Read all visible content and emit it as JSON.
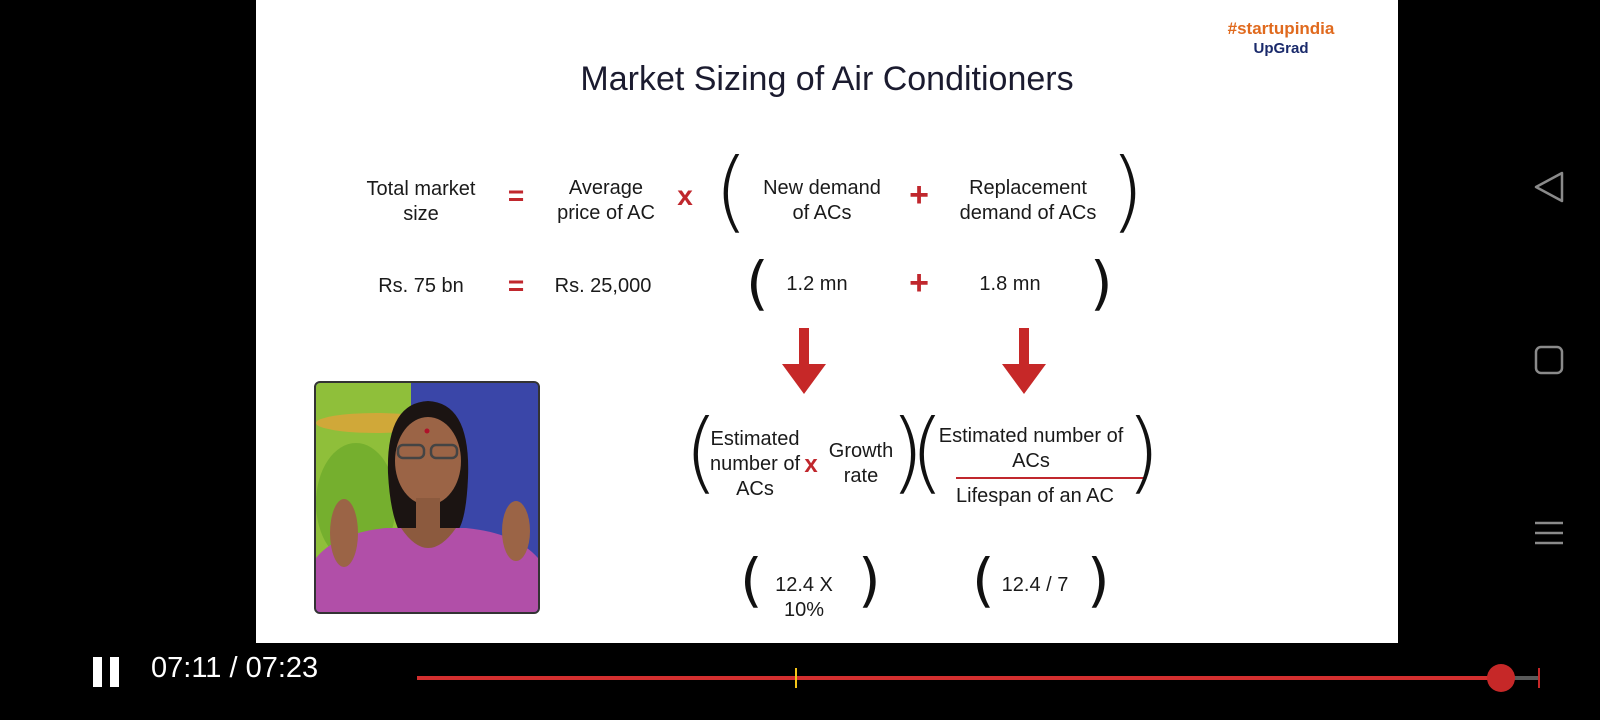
{
  "slide": {
    "title": "Market Sizing of Air Conditioners",
    "logo": {
      "line1": "#startupindia",
      "line2": "UpGrad"
    },
    "formula": {
      "lhs": "Total market size",
      "eq": "=",
      "avg_price": "Average price of AC",
      "times": "x",
      "new_demand": "New demand of ACs",
      "plus": "+",
      "replacement": "Replacement demand of ACs"
    },
    "values": {
      "total": "Rs. 75 bn",
      "eq": "=",
      "price": "Rs. 25,000",
      "new": "1.2  mn",
      "plus": "+",
      "replacement": "1.8  mn"
    },
    "breakdown": {
      "estimated_number": "Estimated number of ACs",
      "times": "x",
      "growth_rate": "Growth rate",
      "numerator": "Estimated number of ACs",
      "denominator": "Lifespan of an AC"
    },
    "calc": {
      "new_calc": "12.4 X 10%",
      "replacement_calc": "12.4 / 7"
    }
  },
  "player": {
    "current_time": "07:11",
    "separator": " / ",
    "total_time": "07:23",
    "progress": 0.966,
    "chapter_marker": 0.337,
    "state": "playing"
  },
  "colors": {
    "accent_red": "#c0272d",
    "progress_red": "#d32f2f",
    "marker_yellow": "#f5c518"
  }
}
